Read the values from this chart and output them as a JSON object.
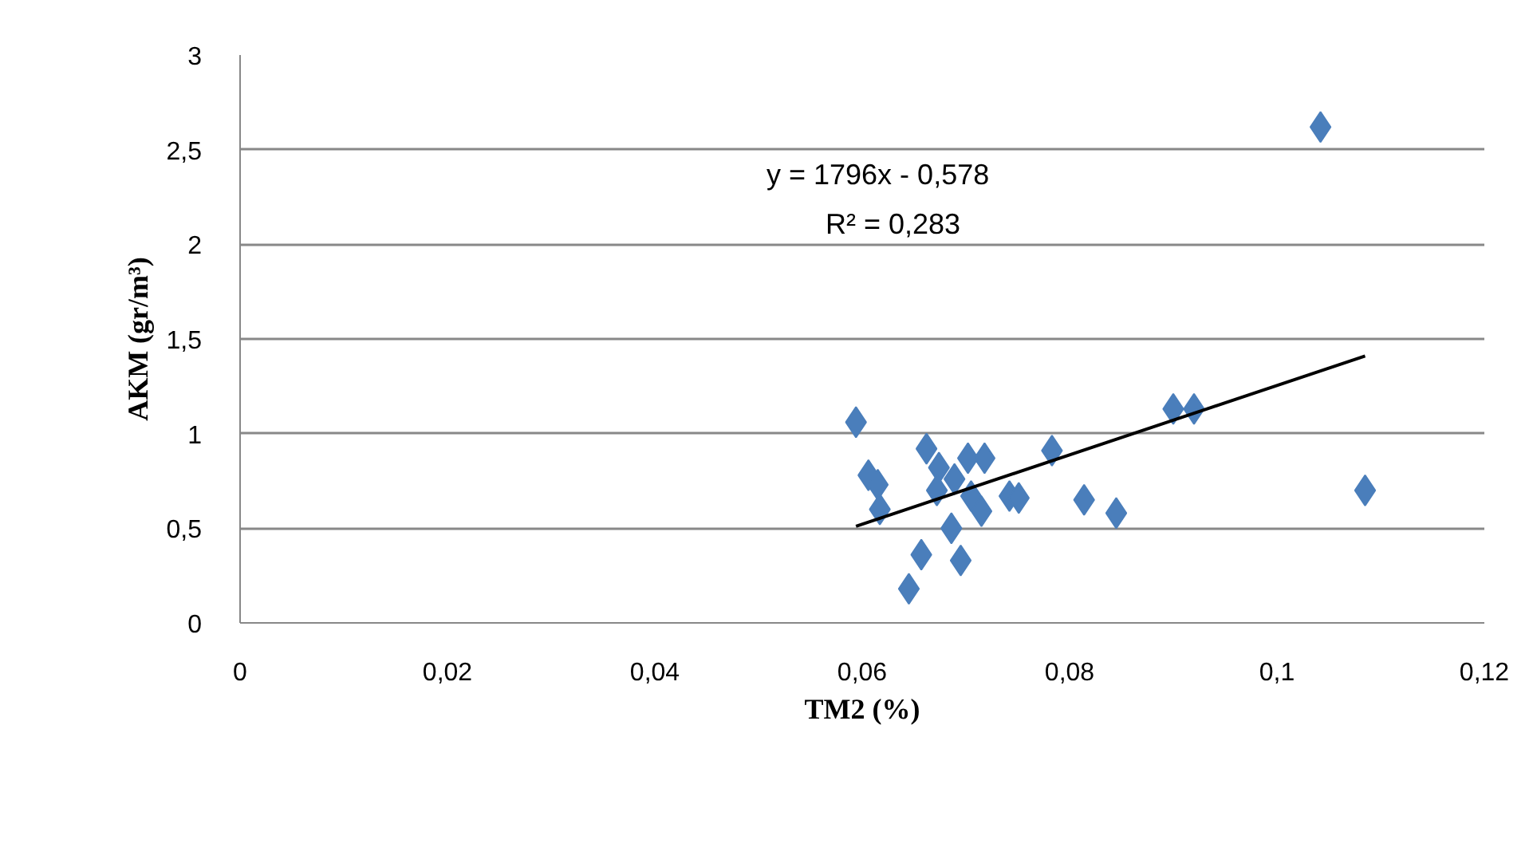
{
  "chart_data": {
    "type": "scatter",
    "xlabel": "TM2 (%)",
    "ylabel": "AKM (gr/m³)",
    "xlim": [
      0,
      0.12
    ],
    "ylim": [
      0,
      3
    ],
    "xticks": [
      0,
      {
        "value": 0.02,
        "label": "0,02"
      },
      {
        "value": 0.04,
        "label": "0,04"
      },
      {
        "value": 0.06,
        "label": "0,06"
      },
      {
        "value": 0.08,
        "label": "0,08"
      },
      {
        "value": 0.1,
        "label": "0,1"
      },
      {
        "value": 0.12,
        "label": "0,12"
      }
    ],
    "yticks": [
      0,
      {
        "value": 0.5,
        "label": "0,5"
      },
      1,
      {
        "value": 1.5,
        "label": "1,5"
      },
      2,
      {
        "value": 2.5,
        "label": "2,5"
      },
      3
    ],
    "grid": "y",
    "annotations": [
      "y = 1796x - 0,578",
      "R² = 0,283"
    ],
    "series": [
      {
        "marker": "diamond",
        "color": "#4a7ebb",
        "x": [
          0.0594,
          0.0606,
          0.0615,
          0.0617,
          0.0662,
          0.0674,
          0.0672,
          0.0689,
          0.0702,
          0.0718,
          0.0705,
          0.0715,
          0.0686,
          0.0657,
          0.0695,
          0.0645,
          0.0742,
          0.0751,
          0.0783,
          0.0814,
          0.0845,
          0.09,
          0.092,
          0.1042,
          0.1085
        ],
        "values": [
          1.06,
          0.78,
          0.73,
          0.6,
          0.92,
          0.82,
          0.7,
          0.76,
          0.87,
          0.87,
          0.67,
          0.59,
          0.5,
          0.36,
          0.33,
          0.18,
          0.67,
          0.66,
          0.91,
          0.65,
          0.58,
          1.13,
          1.13,
          2.62,
          0.7
        ]
      },
      {
        "type": "line",
        "marker": "none",
        "color": "#000000",
        "x": [
          0.0594,
          0.1085
        ],
        "values": [
          0.51,
          1.41
        ]
      }
    ]
  }
}
